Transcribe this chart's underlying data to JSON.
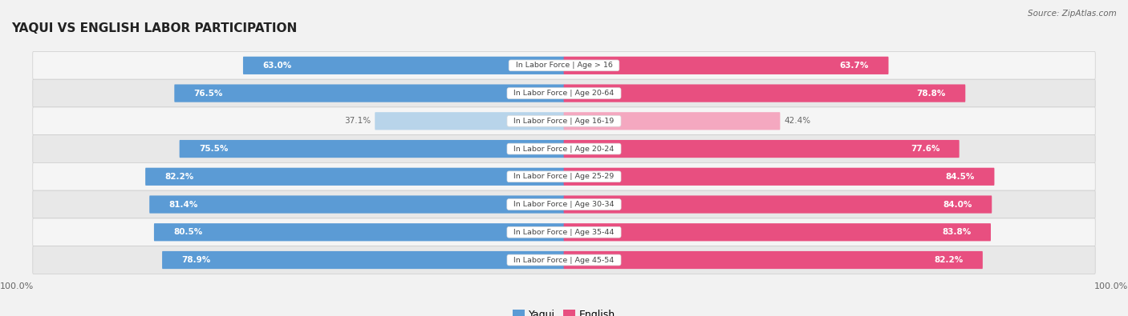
{
  "title": "Yaqui vs English Labor Participation",
  "source": "Source: ZipAtlas.com",
  "categories": [
    "In Labor Force | Age > 16",
    "In Labor Force | Age 20-64",
    "In Labor Force | Age 16-19",
    "In Labor Force | Age 20-24",
    "In Labor Force | Age 25-29",
    "In Labor Force | Age 30-34",
    "In Labor Force | Age 35-44",
    "In Labor Force | Age 45-54"
  ],
  "yaqui_values": [
    63.0,
    76.5,
    37.1,
    75.5,
    82.2,
    81.4,
    80.5,
    78.9
  ],
  "english_values": [
    63.7,
    78.8,
    42.4,
    77.6,
    84.5,
    84.0,
    83.8,
    82.2
  ],
  "yaqui_color": "#5b9bd5",
  "yaqui_color_light": "#b8d4ea",
  "english_color": "#e84f80",
  "english_color_light": "#f4a8c0",
  "max_val": 100.0,
  "background_color": "#f2f2f2",
  "row_bg_color_odd": "#e8e8e8",
  "row_bg_color_even": "#f5f5f5",
  "center_label_bg": "#ffffff",
  "center_label_color": "#444444",
  "value_label_color_inside": "#ffffff",
  "value_label_color_outside": "#666666",
  "tick_label_color": "#666666",
  "title_color": "#222222",
  "source_color": "#666666"
}
